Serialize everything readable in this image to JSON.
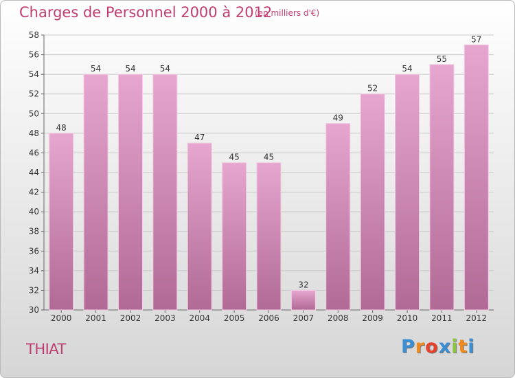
{
  "chart_data": {
    "type": "bar",
    "title": "Charges de Personnel 2000 à 2012",
    "subtitle": "(en milliers d'€)",
    "categories": [
      "2000",
      "2001",
      "2002",
      "2003",
      "2004",
      "2005",
      "2006",
      "2007",
      "2008",
      "2009",
      "2010",
      "2011",
      "2012"
    ],
    "values": [
      48,
      54,
      54,
      54,
      47,
      45,
      45,
      32,
      49,
      52,
      54,
      55,
      57
    ],
    "ylim": [
      30,
      58
    ],
    "yticks": [
      30,
      32,
      34,
      36,
      38,
      40,
      42,
      44,
      46,
      48,
      50,
      52,
      54,
      56,
      58
    ],
    "grid": true,
    "bar_color": "#d98fba"
  },
  "place": "THIAT",
  "logo": {
    "letters": [
      "P",
      "r",
      "o",
      "x",
      "i",
      "t",
      "i"
    ],
    "colors": [
      "#3a8fd4",
      "#f08a1c",
      "#e8402a",
      "#3a8fd4",
      "#8cc63e",
      "#f08a1c",
      "#3a8fd4"
    ]
  }
}
